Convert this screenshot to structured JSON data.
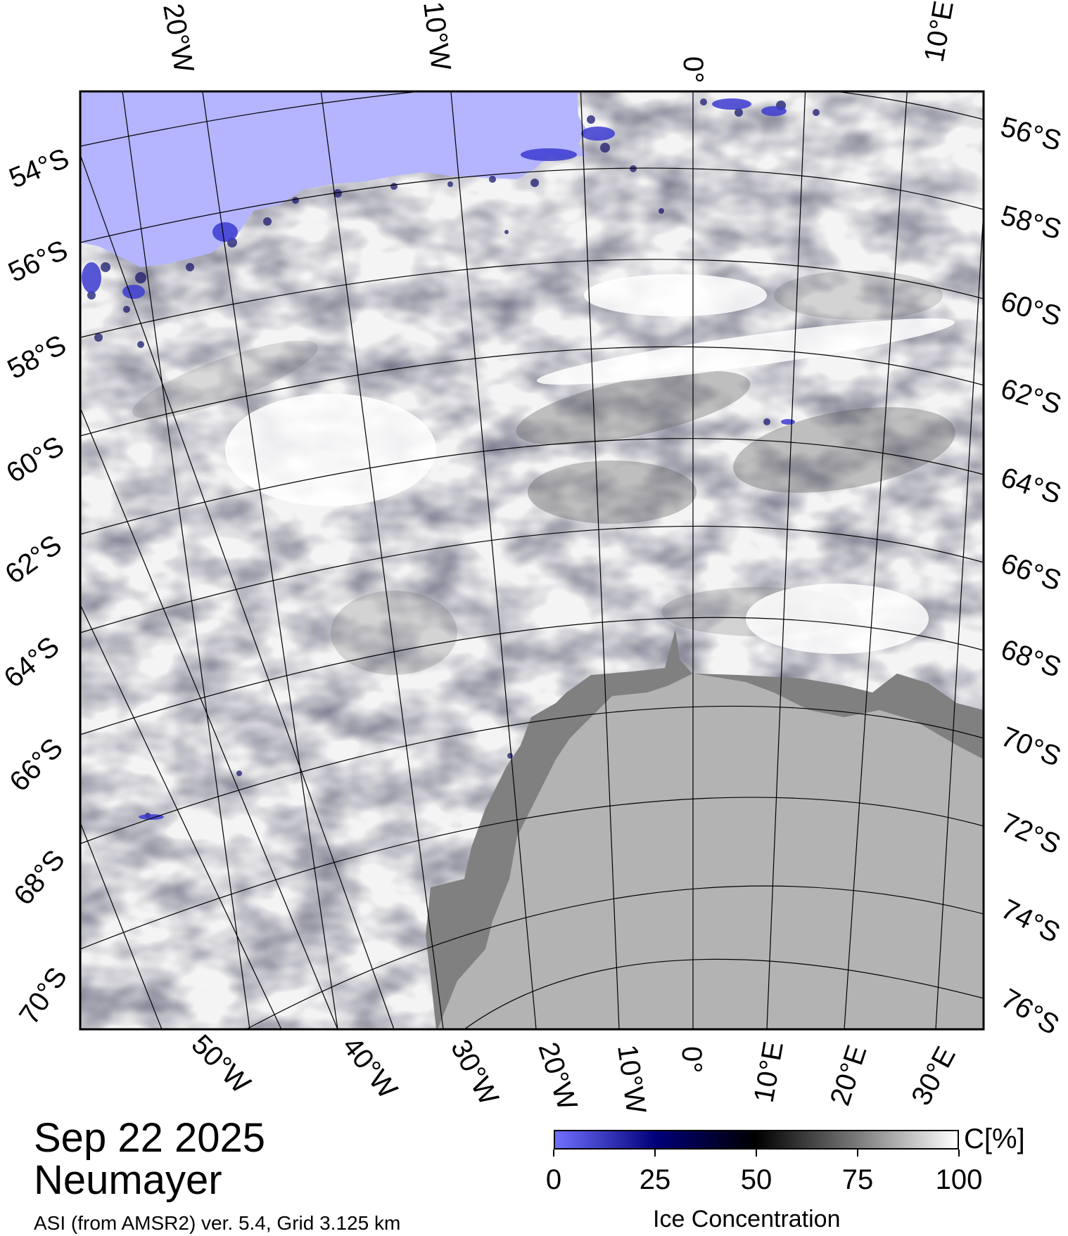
{
  "map": {
    "land_label": "Antarctic land mask",
    "ocean_color": "#b4b4ff",
    "land_color": "#b3b3b3",
    "ice_shelf_color": "#808080",
    "ice_color": "#ffffff"
  },
  "top_lon_labels": [
    "20°W",
    "10°W",
    "0°",
    "10°E"
  ],
  "right_lat_labels": [
    "56°S",
    "58°S",
    "60°S",
    "62°S",
    "64°S",
    "66°S",
    "68°S",
    "70°S",
    "72°S",
    "74°S",
    "76°S"
  ],
  "left_lat_labels": [
    "54°S",
    "56°S",
    "58°S",
    "60°S",
    "62°S",
    "64°S",
    "66°S",
    "68°S",
    "70°S"
  ],
  "bottom_lon_labels": [
    "50°W",
    "40°W",
    "30°W",
    "20°W",
    "10°W",
    "0°",
    "10°E",
    "20°E",
    "30°E"
  ],
  "footer": {
    "date": "Sep 22 2025",
    "station": "Neumayer",
    "product": "ASI (from AMSR2) ver. 5.4,  Grid 3.125 km"
  },
  "colorbar": {
    "unit": "C[%]",
    "title": "Ice Concentration",
    "ticks": [
      "0",
      "25",
      "50",
      "75",
      "100"
    ],
    "tick_values": [
      0,
      25,
      50,
      75,
      100
    ],
    "colors": [
      "#7070ff",
      "#00007a",
      "#000000",
      "#7a7a7a",
      "#ffffff"
    ]
  }
}
